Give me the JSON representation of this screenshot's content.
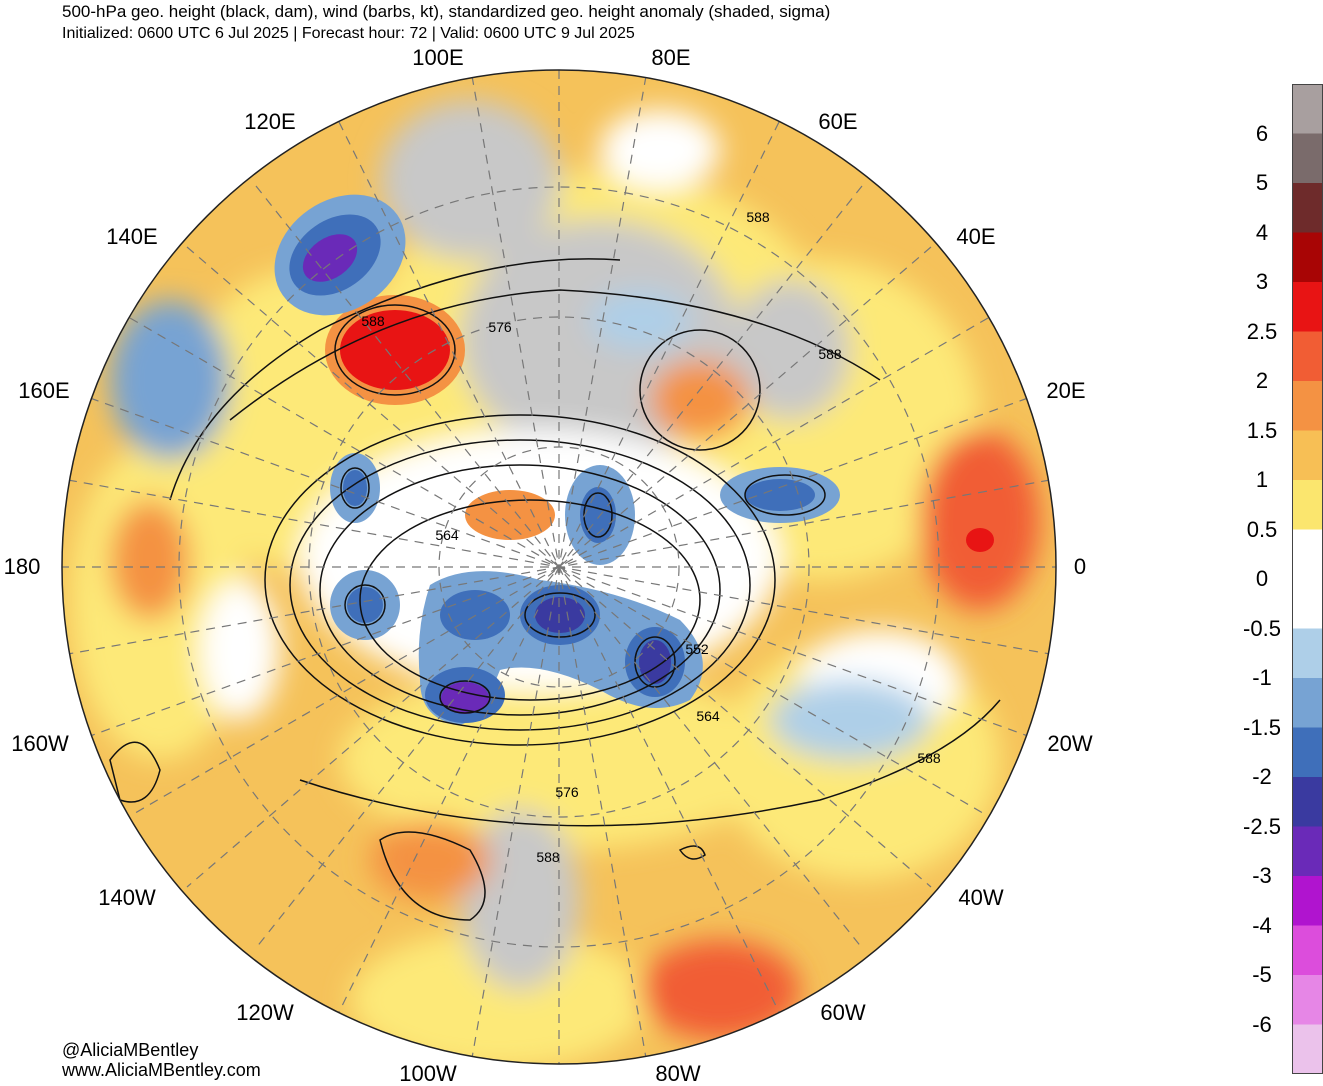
{
  "title": "500-hPa geo. height (black, dam), wind (barbs, kt), standardized geo. height anomaly (shaded, sigma)",
  "subtitle": "Initialized: 0600 UTC 6 Jul 2025 | Forecast hour: 72 | Valid: 0600 UTC 9 Jul 2025",
  "longitude_labels": [
    "100E",
    "80E",
    "120E",
    "60E",
    "140E",
    "40E",
    "160E",
    "20E",
    "180",
    "0",
    "160W",
    "20W",
    "140W",
    "40W",
    "120W",
    "60W",
    "100W",
    "80W"
  ],
  "contour_labels": [
    "588",
    "576",
    "588",
    "564",
    "552",
    "564",
    "588",
    "576",
    "588",
    "588"
  ],
  "credits": {
    "twitter": "@AliciaMBentley",
    "website": "www.AliciaMBentley.com"
  },
  "colorbar": {
    "labels": [
      "6",
      "5",
      "4",
      "3",
      "2.5",
      "2",
      "1.5",
      "1",
      "0.5",
      "0",
      "-0.5",
      "-1",
      "-1.5",
      "-2",
      "-2.5",
      "-3",
      "-4",
      "-5",
      "-6"
    ],
    "colors": [
      "#a89f9f",
      "#7a6b6b",
      "#6e2b2b",
      "#a80505",
      "#e81414",
      "#f15d34",
      "#f49243",
      "#f7bf55",
      "#fbe66e",
      "#ffffff",
      "#ffffff",
      "#aecfe8",
      "#77a3d3",
      "#3f6fba",
      "#3a3aa0",
      "#6a2ab8",
      "#b014cf",
      "#dc4ddc",
      "#e686e6",
      "#ebc2eb"
    ]
  },
  "colors": {
    "orange": "#f5c25a",
    "yellow": "#fde978",
    "red": "#e82a14",
    "blue": "#3f6fba",
    "lightblue": "#aecfe8",
    "gray": "#c8c8c8"
  }
}
